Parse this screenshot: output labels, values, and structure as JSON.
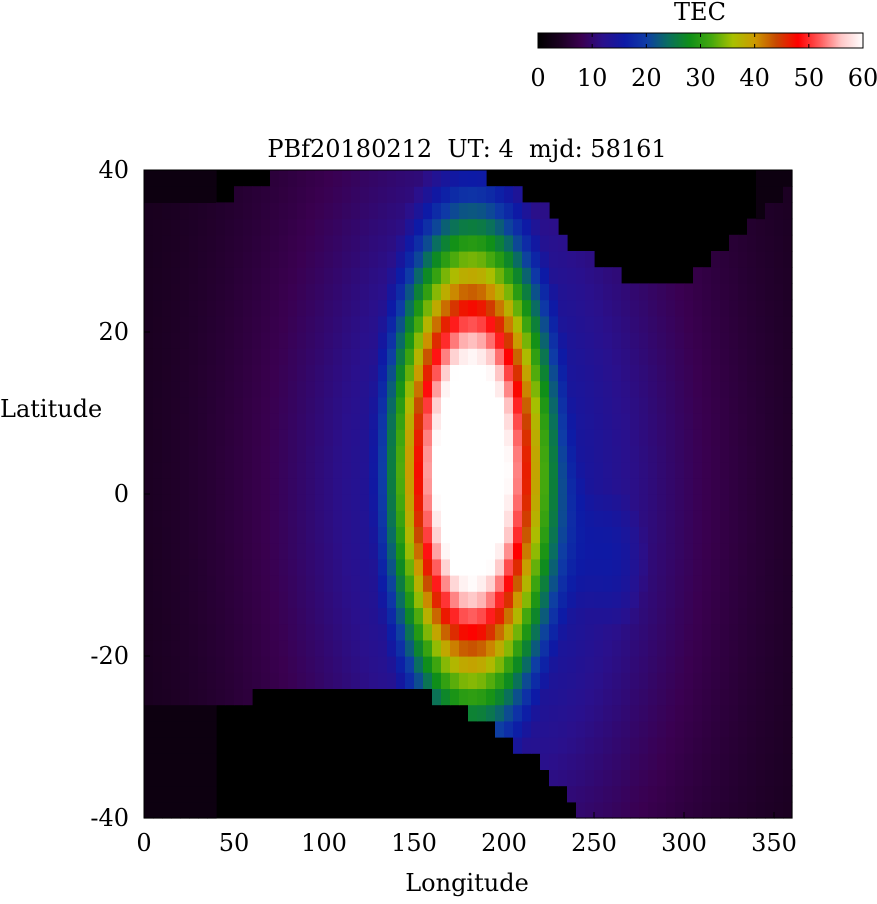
{
  "chart_data": {
    "type": "heatmap",
    "title": "PBf20180212  UT: 4  mjd: 58161",
    "xlabel": "Longitude",
    "ylabel": "Latitude",
    "xlim": [
      0,
      360
    ],
    "ylim": [
      -40,
      40
    ],
    "x_ticks": [
      0,
      50,
      100,
      150,
      200,
      250,
      300,
      350
    ],
    "y_ticks": [
      -40,
      -20,
      0,
      20,
      40
    ],
    "grid": false,
    "grid_resolution": {
      "dlon": 5,
      "dlat": 2
    },
    "colorbar": {
      "label": "TEC",
      "range": [
        0,
        60
      ],
      "ticks": [
        0,
        10,
        20,
        30,
        40,
        50,
        60
      ],
      "placement": "top-right",
      "palette": [
        "#000000",
        "#1a0020",
        "#3a0050",
        "#2a108c",
        "#0d1aa6",
        "#0e3ca6",
        "#0a6e60",
        "#0f8f18",
        "#44a80e",
        "#a8c000",
        "#cc9a00",
        "#c84800",
        "#ff0000",
        "#ff5a5a",
        "#ffc8c8",
        "#ffffff"
      ]
    },
    "coverage": {
      "north_boundary": [
        [
          40,
          36
        ],
        [
          60,
          38
        ],
        [
          80,
          40
        ],
        [
          100,
          40
        ],
        [
          180,
          40
        ],
        [
          200,
          38
        ],
        [
          220,
          36
        ],
        [
          240,
          30
        ],
        [
          260,
          28
        ],
        [
          280,
          25
        ],
        [
          300,
          26
        ],
        [
          320,
          30
        ],
        [
          340,
          34
        ],
        [
          360,
          38
        ]
      ],
      "south_boundary": [
        [
          40,
          -26
        ],
        [
          60,
          -25
        ],
        [
          80,
          -24
        ],
        [
          100,
          -23
        ],
        [
          120,
          -23
        ],
        [
          140,
          -24
        ],
        [
          160,
          -25
        ],
        [
          180,
          -27
        ],
        [
          200,
          -30
        ],
        [
          220,
          -33
        ],
        [
          230,
          -36
        ],
        [
          240,
          -39
        ],
        [
          260,
          -40
        ]
      ]
    },
    "anomaly_peak": {
      "lon": 182,
      "lat": 3,
      "value": 62,
      "lon_halfwidth": 32,
      "lat_halfwidth": 22
    },
    "secondary_enhancement": {
      "lon": 262,
      "lat": -8,
      "value": 22
    }
  }
}
